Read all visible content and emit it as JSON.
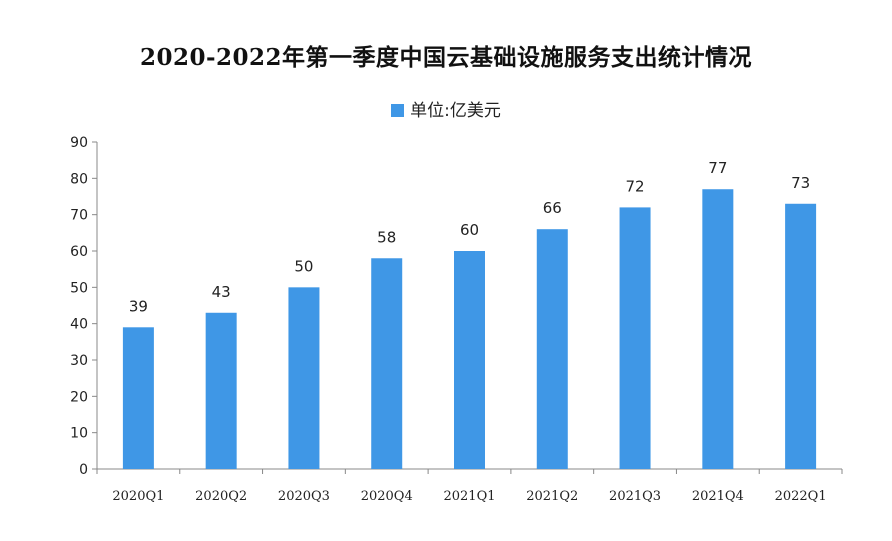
{
  "chart_data": {
    "type": "bar",
    "title": "2020-2022年第一季度中国云基础设施服务支出统计情况",
    "legend": "单位:亿美元",
    "legend_position": "top-center",
    "categories": [
      "2020Q1",
      "2020Q2",
      "2020Q3",
      "2020Q4",
      "2021Q1",
      "2021Q2",
      "2021Q3",
      "2021Q4",
      "2022Q1"
    ],
    "values": [
      39,
      43,
      50,
      58,
      60,
      66,
      72,
      77,
      73
    ],
    "ylim": [
      0,
      90
    ],
    "yticks": [
      0,
      10,
      20,
      30,
      40,
      50,
      60,
      70,
      80,
      90
    ],
    "grid": false,
    "bar_color": "#3f97e6",
    "xlabel": "",
    "ylabel": ""
  }
}
